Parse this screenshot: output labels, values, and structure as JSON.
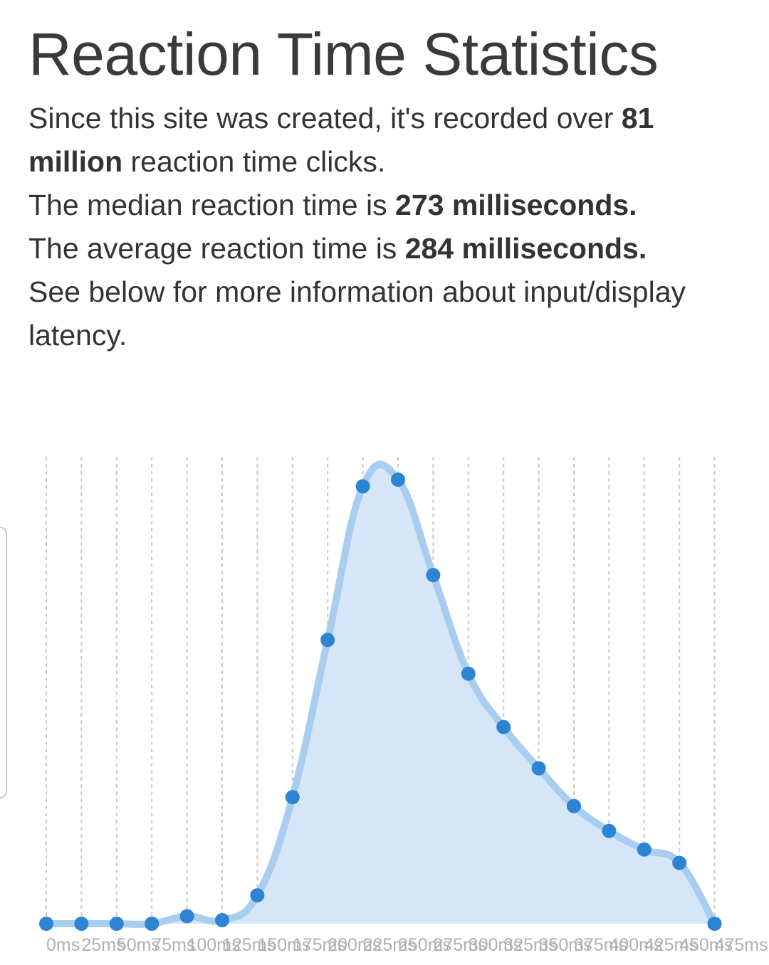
{
  "page": {
    "title": "Reaction Time Statistics",
    "line1_pre": "Since this site was created, it's recorded over ",
    "line1_bold": "81 million",
    "line1_post": " reaction time clicks.",
    "line2_pre": "The median reaction time is ",
    "line2_bold": "273 milliseconds.",
    "line3_pre": "The average reaction time is ",
    "line3_bold": "284 milliseconds.",
    "line4": "See below for more information about input/display latency."
  },
  "colors": {
    "line": "#a8cdee",
    "fill": "#d4e6f7",
    "point": "#2d84d2",
    "grid": "#c8c8c8",
    "tick": "#b0b0b0"
  },
  "chart_data": {
    "type": "area",
    "title": "",
    "xlabel": "",
    "ylabel": "",
    "grid": "vertical dashed",
    "categories": [
      "0ms",
      "25ms",
      "50ms",
      "75ms",
      "100ms",
      "125ms",
      "150ms",
      "175ms",
      "200ms",
      "225ms",
      "250ms",
      "275ms",
      "300ms",
      "325ms",
      "350ms",
      "375ms",
      "400ms",
      "425ms",
      "450ms",
      "475ms"
    ],
    "values": [
      0,
      0,
      0,
      0,
      1.7,
      0.8,
      6.4,
      28.5,
      63.9,
      98.5,
      100,
      78.5,
      56.3,
      44.3,
      35.0,
      26.5,
      20.9,
      16.7,
      13.7,
      0
    ],
    "ylim": [
      0,
      100
    ]
  }
}
